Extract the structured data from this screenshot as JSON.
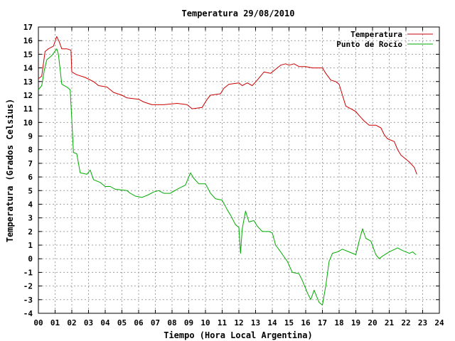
{
  "chart_data": {
    "type": "line",
    "title": "Temperatura 29/08/2010",
    "xlabel": "Tiempo (Hora Local Argentina)",
    "ylabel": "Temperatura (Grados Celsius)",
    "xlim": [
      0,
      24
    ],
    "ylim": [
      -4,
      17
    ],
    "xticks": [
      "00",
      "01",
      "02",
      "03",
      "04",
      "05",
      "06",
      "07",
      "08",
      "09",
      "10",
      "11",
      "12",
      "13",
      "14",
      "15",
      "16",
      "17",
      "18",
      "19",
      "20",
      "21",
      "22",
      "23",
      "24"
    ],
    "yticks": [
      "17",
      "16",
      "15",
      "14",
      "13",
      "12",
      "11",
      "10",
      "9",
      "8",
      "7",
      "6",
      "5",
      "4",
      "3",
      "2",
      "1",
      "0",
      "-1",
      "-2",
      "-3",
      "-4"
    ],
    "grid": true,
    "legend_position": "top-right",
    "series": [
      {
        "name": "Temperatura",
        "color": "#cc0000",
        "points": [
          [
            0.0,
            13.2
          ],
          [
            0.2,
            13.4
          ],
          [
            0.4,
            15.2
          ],
          [
            0.6,
            15.4
          ],
          [
            0.9,
            15.6
          ],
          [
            1.1,
            16.3
          ],
          [
            1.25,
            15.9
          ],
          [
            1.4,
            15.4
          ],
          [
            1.7,
            15.4
          ],
          [
            1.95,
            15.3
          ],
          [
            2.0,
            13.7
          ],
          [
            2.3,
            13.5
          ],
          [
            2.8,
            13.3
          ],
          [
            3.3,
            13.0
          ],
          [
            3.6,
            12.7
          ],
          [
            4.1,
            12.6
          ],
          [
            4.5,
            12.2
          ],
          [
            5.0,
            12.0
          ],
          [
            5.3,
            11.8
          ],
          [
            6.0,
            11.7
          ],
          [
            6.3,
            11.5
          ],
          [
            6.8,
            11.3
          ],
          [
            7.5,
            11.3
          ],
          [
            8.3,
            11.4
          ],
          [
            8.9,
            11.3
          ],
          [
            9.2,
            11.0
          ],
          [
            9.8,
            11.1
          ],
          [
            10.1,
            11.7
          ],
          [
            10.3,
            12.0
          ],
          [
            10.9,
            12.1
          ],
          [
            11.1,
            12.5
          ],
          [
            11.4,
            12.8
          ],
          [
            12.0,
            12.9
          ],
          [
            12.2,
            12.7
          ],
          [
            12.5,
            12.9
          ],
          [
            12.8,
            12.7
          ],
          [
            13.1,
            13.1
          ],
          [
            13.5,
            13.7
          ],
          [
            13.9,
            13.6
          ],
          [
            14.2,
            13.9
          ],
          [
            14.5,
            14.2
          ],
          [
            14.8,
            14.3
          ],
          [
            15.0,
            14.2
          ],
          [
            15.3,
            14.3
          ],
          [
            15.6,
            14.1
          ],
          [
            16.0,
            14.1
          ],
          [
            16.4,
            14.0
          ],
          [
            17.0,
            14.0
          ],
          [
            17.2,
            13.6
          ],
          [
            17.5,
            13.1
          ],
          [
            17.8,
            13.0
          ],
          [
            18.0,
            12.8
          ],
          [
            18.2,
            12.0
          ],
          [
            18.4,
            11.2
          ],
          [
            18.7,
            11.0
          ],
          [
            19.0,
            10.8
          ],
          [
            19.2,
            10.5
          ],
          [
            19.5,
            10.1
          ],
          [
            19.8,
            9.8
          ],
          [
            20.2,
            9.8
          ],
          [
            20.5,
            9.6
          ],
          [
            20.7,
            9.1
          ],
          [
            20.9,
            8.8
          ],
          [
            21.3,
            8.6
          ],
          [
            21.5,
            8.0
          ],
          [
            21.7,
            7.6
          ],
          [
            22.0,
            7.3
          ],
          [
            22.2,
            7.1
          ],
          [
            22.5,
            6.7
          ],
          [
            22.65,
            6.2
          ]
        ]
      },
      {
        "name": "Punto de Rocío",
        "color": "#00aa00",
        "points": [
          [
            0.0,
            12.4
          ],
          [
            0.2,
            12.7
          ],
          [
            0.35,
            13.8
          ],
          [
            0.5,
            14.6
          ],
          [
            0.8,
            14.9
          ],
          [
            1.1,
            15.4
          ],
          [
            1.2,
            15.0
          ],
          [
            1.4,
            12.8
          ],
          [
            1.7,
            12.6
          ],
          [
            1.9,
            12.4
          ],
          [
            2.0,
            10.2
          ],
          [
            2.1,
            7.8
          ],
          [
            2.3,
            7.7
          ],
          [
            2.5,
            6.3
          ],
          [
            2.9,
            6.2
          ],
          [
            3.1,
            6.5
          ],
          [
            3.3,
            5.8
          ],
          [
            3.7,
            5.6
          ],
          [
            4.0,
            5.3
          ],
          [
            4.3,
            5.3
          ],
          [
            4.6,
            5.1
          ],
          [
            5.3,
            5.0
          ],
          [
            5.5,
            4.8
          ],
          [
            5.8,
            4.6
          ],
          [
            6.2,
            4.5
          ],
          [
            6.6,
            4.7
          ],
          [
            6.9,
            4.9
          ],
          [
            7.2,
            5.0
          ],
          [
            7.5,
            4.8
          ],
          [
            7.9,
            4.8
          ],
          [
            8.3,
            5.1
          ],
          [
            8.8,
            5.4
          ],
          [
            9.1,
            6.3
          ],
          [
            9.3,
            5.9
          ],
          [
            9.6,
            5.5
          ],
          [
            10.0,
            5.5
          ],
          [
            10.3,
            4.8
          ],
          [
            10.6,
            4.4
          ],
          [
            11.0,
            4.3
          ],
          [
            11.3,
            3.6
          ],
          [
            11.5,
            3.2
          ],
          [
            11.8,
            2.5
          ],
          [
            12.0,
            2.3
          ],
          [
            12.1,
            0.4
          ],
          [
            12.2,
            2.2
          ],
          [
            12.4,
            3.5
          ],
          [
            12.6,
            2.7
          ],
          [
            12.9,
            2.8
          ],
          [
            13.1,
            2.4
          ],
          [
            13.4,
            2.0
          ],
          [
            13.8,
            2.0
          ],
          [
            14.0,
            1.9
          ],
          [
            14.2,
            1.0
          ],
          [
            14.5,
            0.5
          ],
          [
            14.9,
            -0.2
          ],
          [
            15.2,
            -1.0
          ],
          [
            15.6,
            -1.1
          ],
          [
            15.8,
            -1.6
          ],
          [
            16.1,
            -2.5
          ],
          [
            16.3,
            -3.0
          ],
          [
            16.5,
            -2.3
          ],
          [
            16.8,
            -3.2
          ],
          [
            17.0,
            -3.4
          ],
          [
            17.2,
            -2.0
          ],
          [
            17.4,
            -0.2
          ],
          [
            17.6,
            0.4
          ],
          [
            17.9,
            0.5
          ],
          [
            18.2,
            0.7
          ],
          [
            18.6,
            0.5
          ],
          [
            19.0,
            0.3
          ],
          [
            19.2,
            1.3
          ],
          [
            19.4,
            2.2
          ],
          [
            19.6,
            1.5
          ],
          [
            19.9,
            1.3
          ],
          [
            20.2,
            0.3
          ],
          [
            20.4,
            0.0
          ],
          [
            20.6,
            0.2
          ],
          [
            21.0,
            0.5
          ],
          [
            21.5,
            0.8
          ],
          [
            21.8,
            0.6
          ],
          [
            22.2,
            0.4
          ],
          [
            22.4,
            0.5
          ],
          [
            22.6,
            0.3
          ]
        ]
      }
    ]
  }
}
